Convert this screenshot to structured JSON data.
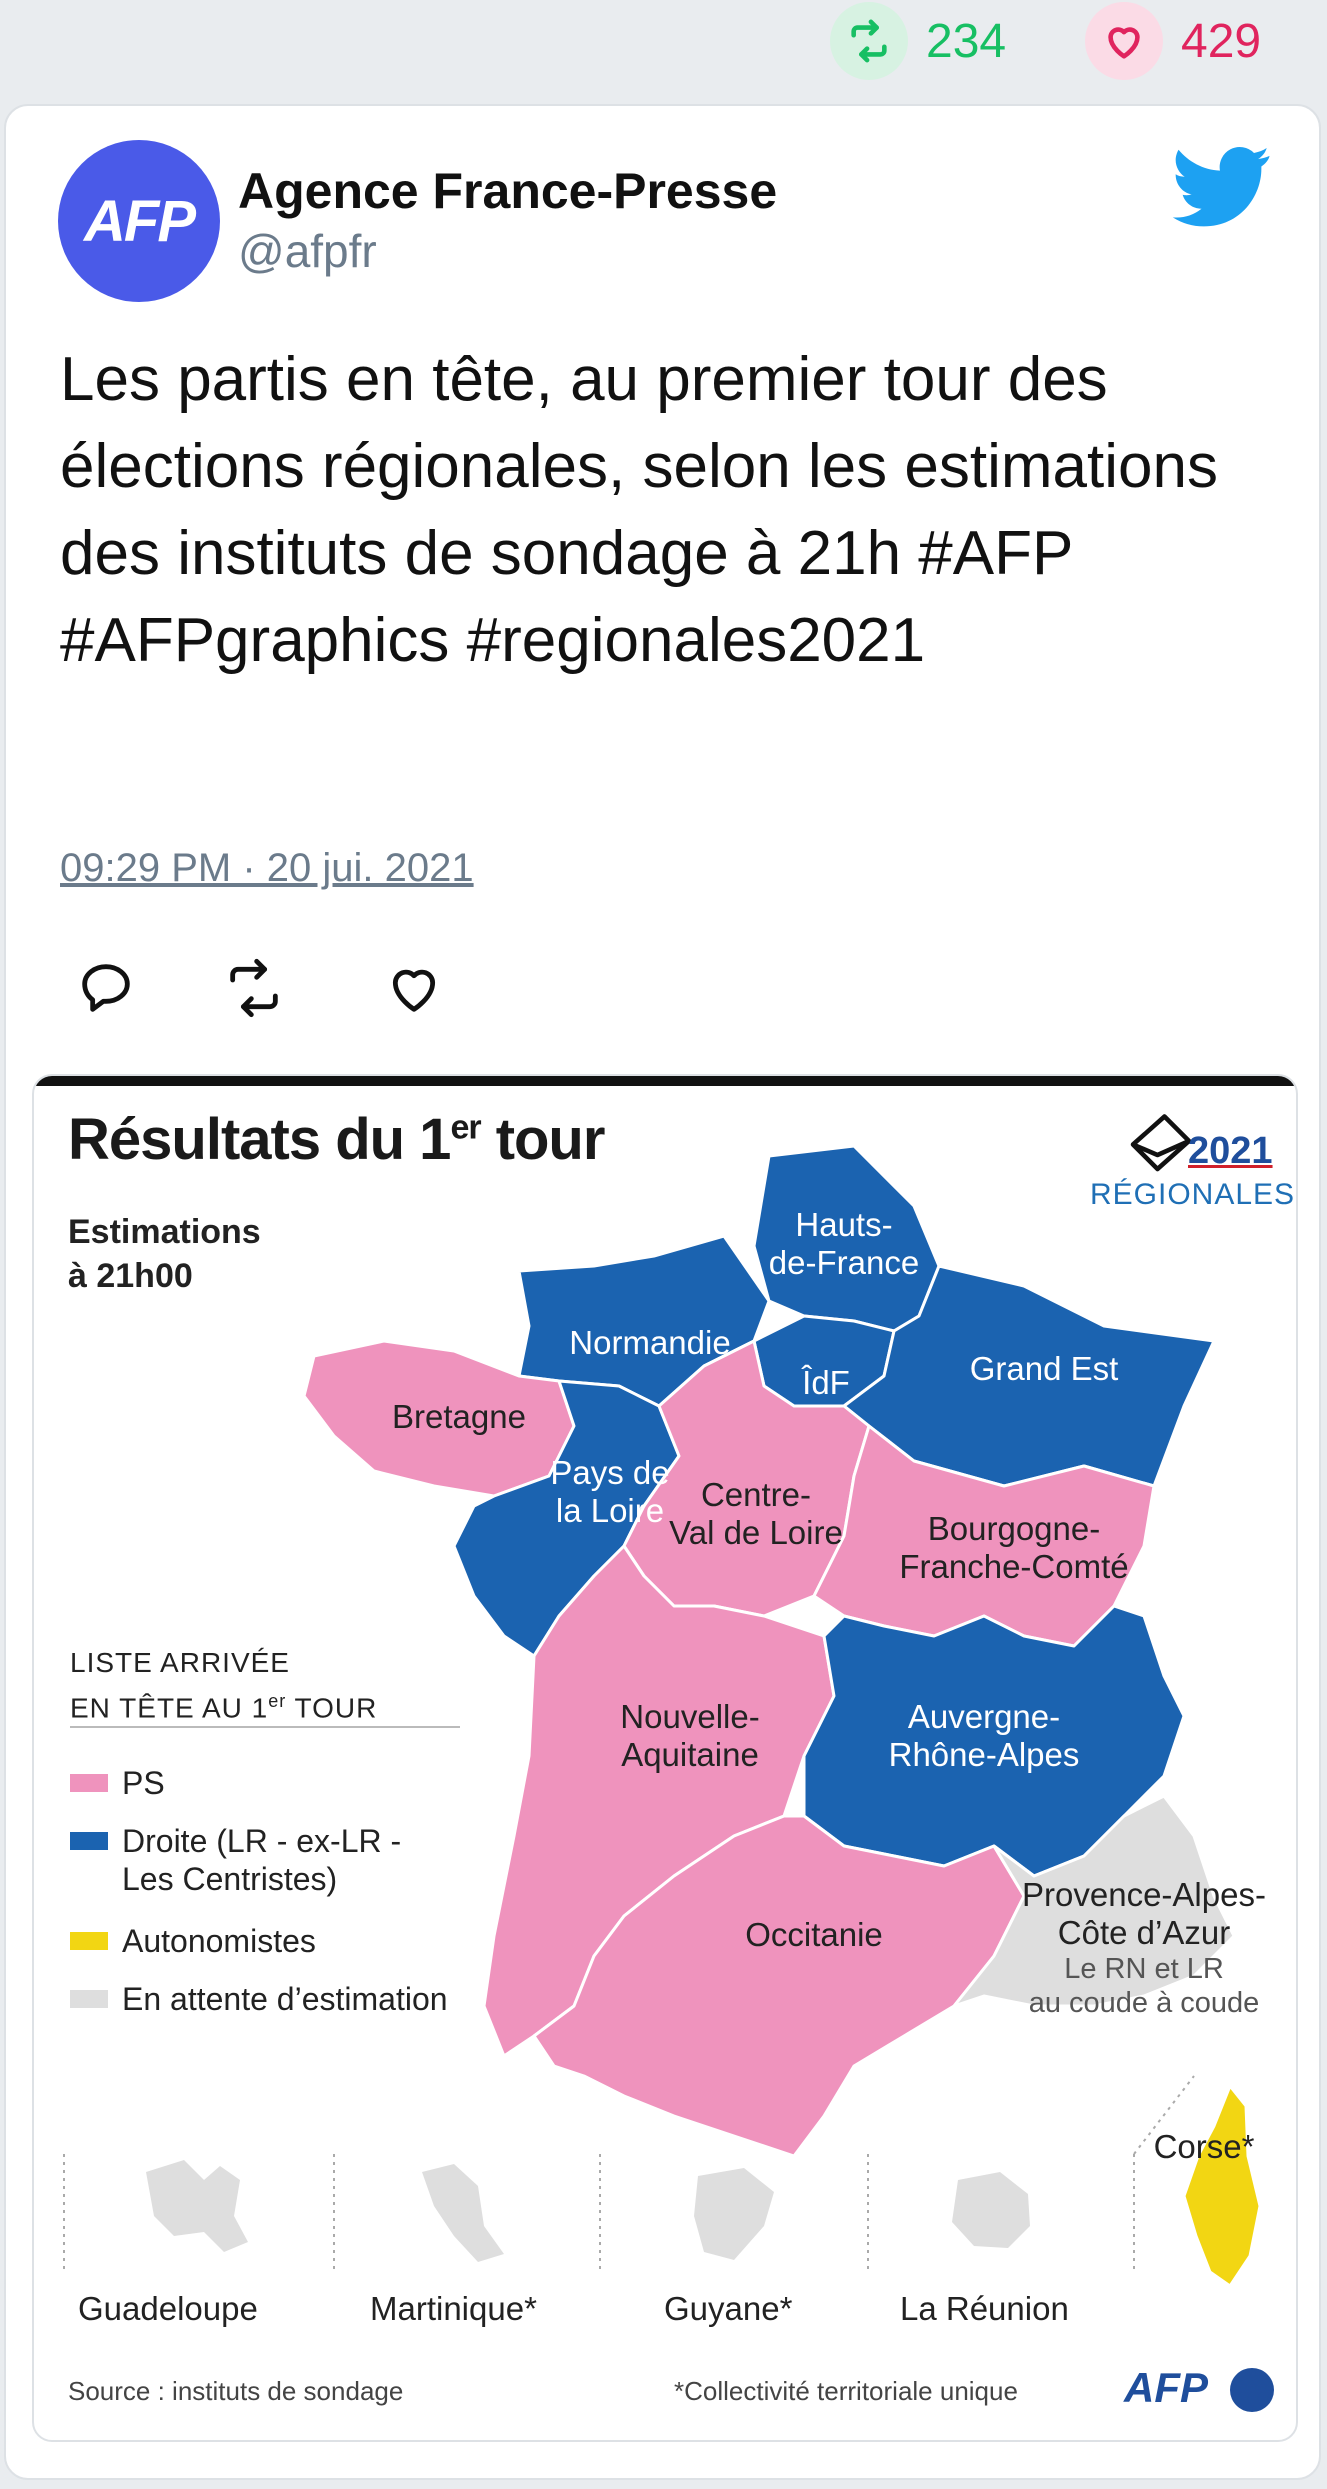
{
  "stats": {
    "retweets": "234",
    "likes": "429"
  },
  "author": {
    "avatar_text": "AFP",
    "name": "Agence France-Presse",
    "handle": "@afpfr"
  },
  "tweet": {
    "text": "Les partis en tête, au premier tour des élections régionales, selon les estimations des instituts de sondage à 21h #AFP #AFPgraphics #regionales2021",
    "timestamp": "09:29 PM · 20 jui. 2021"
  },
  "icons": [
    "retweet-icon",
    "heart-icon",
    "twitter-bird-icon",
    "reply-icon",
    "ballot-icon"
  ],
  "colors": {
    "ps": "#ef93bd",
    "droite": "#1b63b0",
    "autonomistes": "#f2d613",
    "attente": "#dedede",
    "twitter": "#1da1f2"
  },
  "graphic": {
    "title": "Résultats du 1",
    "title_sup": "er",
    "title_end": " tour",
    "subtitle_line1": "Estimations",
    "subtitle_line2": "à 21h00",
    "year": "2021",
    "regionales": "RÉGIONALES",
    "legend_title_line1": "LISTE ARRIVÉE",
    "legend_title_line2": "EN TÊTE AU 1",
    "legend_title_sup": "er",
    "legend_title_end": " TOUR",
    "legend": [
      {
        "label": "PS"
      },
      {
        "label": "Droite (LR - ex-LR -",
        "label2": "Les Centristes)"
      },
      {
        "label": "Autonomistes"
      },
      {
        "label": "En attente d’estimation"
      }
    ],
    "regions": {
      "hauts_de_france": [
        "Hauts-",
        "de-France"
      ],
      "normandie": "Normandie",
      "idf": "ÎdF",
      "grand_est": "Grand Est",
      "bretagne": "Bretagne",
      "pays_de_la_loire": [
        "Pays de",
        "la Loire"
      ],
      "centre": [
        "Centre-",
        "Val de Loire"
      ],
      "bourgogne": [
        "Bourgogne-",
        "Franche-Comté"
      ],
      "nouvelle_aquitaine": [
        "Nouvelle-",
        "Aquitaine"
      ],
      "auvergne": [
        "Auvergne-",
        "Rhône-Alpes"
      ],
      "occitanie": "Occitanie",
      "paca": [
        "Provence-Alpes-",
        "Côte d’Azur"
      ],
      "paca_note": [
        "Le RN et LR",
        "au coude à coude"
      ],
      "corse": "Corse*"
    },
    "overseas": [
      "Guadeloupe",
      "Martinique*",
      "Guyane*",
      "La Réunion"
    ],
    "source": "Source : instituts de sondage",
    "note": "*Collectivité territoriale unique",
    "logo": "AFP"
  }
}
